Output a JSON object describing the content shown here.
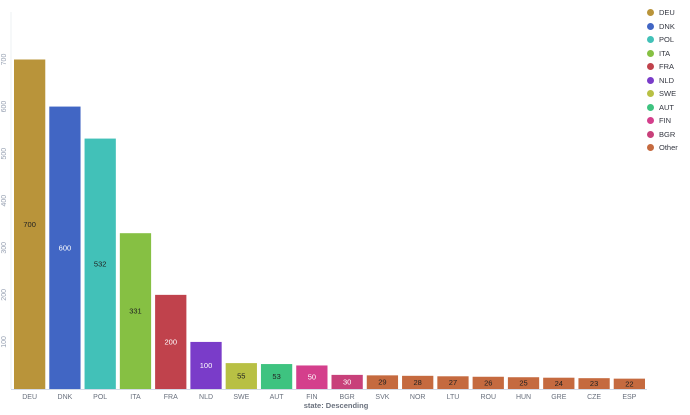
{
  "chart_data": {
    "type": "bar",
    "title": "",
    "xlabel": "state: Descending",
    "ylabel": "",
    "ylim": [
      0,
      700
    ],
    "yticks": [
      100,
      200,
      300,
      400,
      500,
      600,
      700
    ],
    "grid": false,
    "legend_position": "top-right",
    "categories": [
      "DEU",
      "DNK",
      "POL",
      "ITA",
      "FRA",
      "NLD",
      "SWE",
      "AUT",
      "FIN",
      "BGR",
      "SVK",
      "NOR",
      "LTU",
      "ROU",
      "HUN",
      "GRE",
      "CZE",
      "ESP"
    ],
    "values": [
      700,
      600,
      532,
      331,
      200,
      100,
      55,
      53,
      50,
      30,
      29,
      28,
      27,
      26,
      25,
      24,
      23,
      22
    ],
    "bar_colors": [
      "#b9943a",
      "#4166c4",
      "#42c1b8",
      "#86c043",
      "#c0424c",
      "#7a3cc9",
      "#b8c044",
      "#3ec380",
      "#d43f8c",
      "#c8407a",
      "#c56a3f",
      "#c56a3f",
      "#c56a3f",
      "#c56a3f",
      "#c56a3f",
      "#c56a3f",
      "#c56a3f",
      "#c56a3f"
    ],
    "label_colors": [
      "#222222",
      "#ffffff",
      "#222222",
      "#222222",
      "#ffffff",
      "#ffffff",
      "#222222",
      "#222222",
      "#ffffff",
      "#ffffff",
      "#222222",
      "#222222",
      "#222222",
      "#222222",
      "#222222",
      "#222222",
      "#222222",
      "#222222"
    ],
    "legend": [
      {
        "label": "DEU",
        "color": "#b9943a"
      },
      {
        "label": "DNK",
        "color": "#4166c4"
      },
      {
        "label": "POL",
        "color": "#42c1b8"
      },
      {
        "label": "ITA",
        "color": "#86c043"
      },
      {
        "label": "FRA",
        "color": "#c0424c"
      },
      {
        "label": "NLD",
        "color": "#7a3cc9"
      },
      {
        "label": "SWE",
        "color": "#b8c044"
      },
      {
        "label": "AUT",
        "color": "#3ec380"
      },
      {
        "label": "FIN",
        "color": "#d43f8c"
      },
      {
        "label": "BGR",
        "color": "#c8407a"
      },
      {
        "label": "Other",
        "color": "#c56a3f"
      }
    ]
  }
}
